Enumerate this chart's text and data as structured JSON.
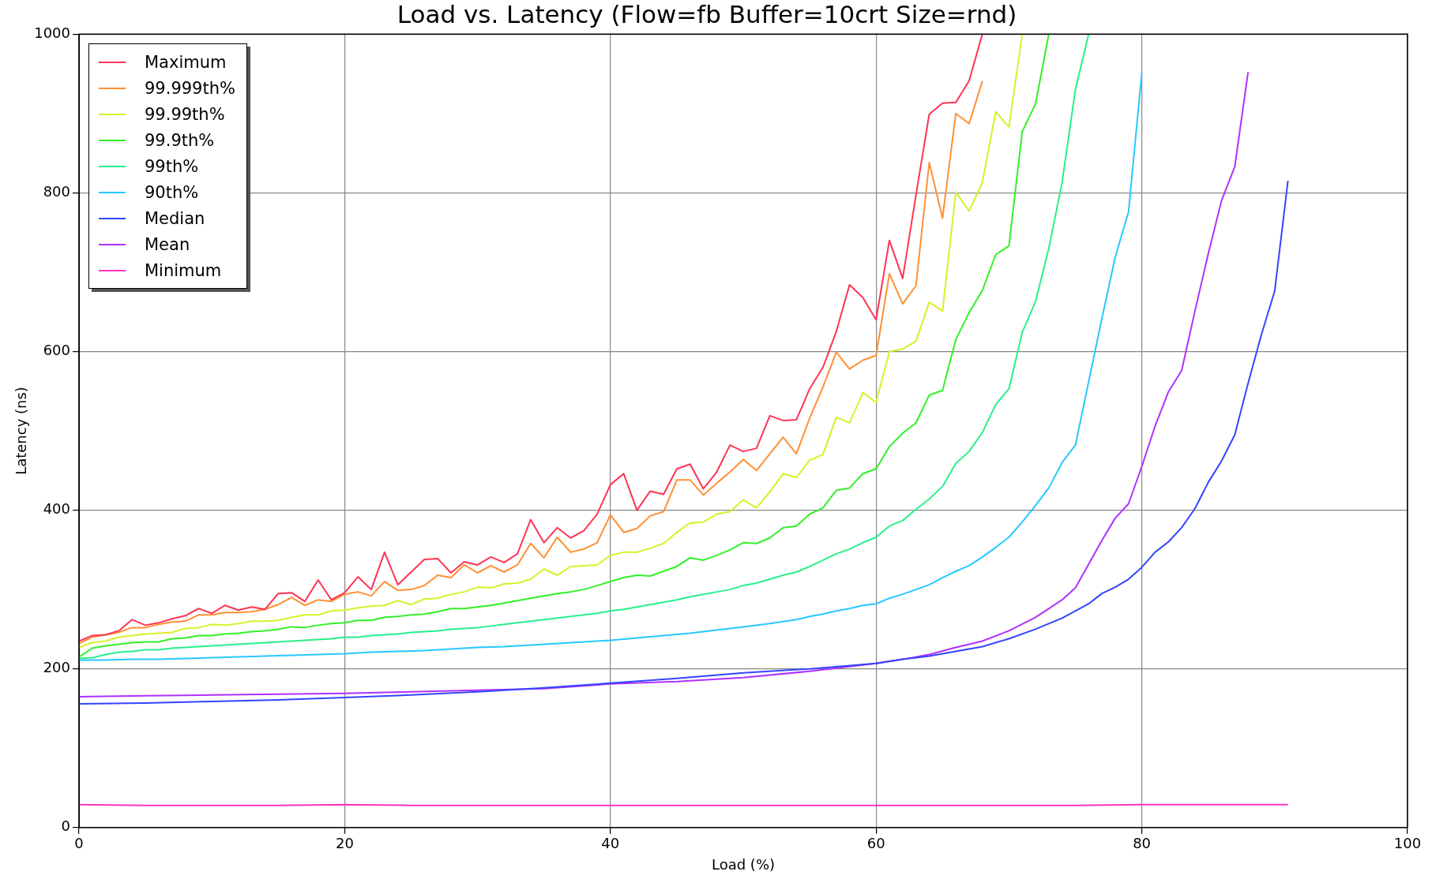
{
  "chart_data": {
    "type": "line",
    "title": "Load vs. Latency (Flow=fb Buffer=10crt Size=rnd)",
    "xlabel": "Load (%)",
    "ylabel": "Latency (ns)",
    "xlim": [
      0,
      100
    ],
    "xticks": [
      0,
      20,
      40,
      60,
      80,
      100
    ],
    "ylim": [
      0,
      1000
    ],
    "yticks": [
      0,
      200,
      400,
      600,
      800,
      1000
    ],
    "grid": true,
    "legend": "top left",
    "marker": "none",
    "line_style": "solid",
    "series": [
      {
        "name": "Maximum",
        "color": "#ff3355",
        "x": [
          0,
          1,
          2,
          3,
          4,
          5,
          6,
          7,
          8,
          9,
          10,
          11,
          12,
          13,
          14,
          15,
          16,
          17,
          18,
          19,
          20,
          21,
          22,
          23,
          24,
          25,
          26,
          27,
          28,
          29,
          30,
          31,
          32,
          33,
          34,
          35,
          36,
          37,
          38,
          39,
          40,
          41,
          42,
          43,
          44,
          45,
          46,
          47,
          48,
          49,
          50,
          51,
          52,
          53,
          54,
          55,
          56,
          57,
          58,
          59,
          60,
          61,
          62,
          63,
          64,
          65,
          66,
          67,
          68
        ],
        "values": [
          235,
          242,
          243,
          248,
          262,
          255,
          258,
          263,
          267,
          276,
          270,
          280,
          274,
          278,
          275,
          295,
          296,
          285,
          312,
          287,
          296,
          316,
          300,
          347,
          306,
          322,
          338,
          339,
          321,
          335,
          331,
          341,
          334,
          345,
          388,
          359,
          378,
          365,
          374,
          395,
          432,
          446,
          400,
          424,
          420,
          452,
          458,
          427,
          448,
          482,
          474,
          478,
          519,
          513,
          514,
          553,
          580,
          625,
          684,
          668,
          640,
          740,
          692,
          797,
          899,
          913,
          914,
          941,
          1000
        ]
      },
      {
        "name": "99.999th%",
        "color": "#ff9033",
        "x": [
          0,
          1,
          2,
          3,
          4,
          5,
          6,
          7,
          8,
          9,
          10,
          11,
          12,
          13,
          14,
          15,
          16,
          17,
          18,
          19,
          20,
          21,
          22,
          23,
          24,
          25,
          26,
          27,
          28,
          29,
          30,
          31,
          32,
          33,
          34,
          35,
          36,
          37,
          38,
          39,
          40,
          41,
          42,
          43,
          44,
          45,
          46,
          47,
          48,
          49,
          50,
          51,
          52,
          53,
          54,
          55,
          56,
          57,
          58,
          59,
          60,
          61,
          62,
          63,
          64,
          65,
          66,
          67,
          68
        ],
        "values": [
          232,
          240,
          243,
          246,
          252,
          252,
          256,
          259,
          260,
          268,
          268,
          271,
          271,
          272,
          275,
          281,
          290,
          280,
          287,
          285,
          294,
          297,
          292,
          310,
          299,
          300,
          305,
          318,
          315,
          331,
          321,
          330,
          322,
          331,
          358,
          340,
          366,
          347,
          351,
          359,
          394,
          372,
          377,
          393,
          398,
          438,
          438,
          419,
          434,
          448,
          464,
          450,
          471,
          492,
          471,
          516,
          555,
          599,
          578,
          589,
          595,
          698,
          660,
          683,
          838,
          768,
          900,
          887,
          941
        ]
      },
      {
        "name": "99.99th%",
        "color": "#d8f028",
        "x": [
          0,
          1,
          2,
          3,
          4,
          5,
          6,
          7,
          8,
          9,
          10,
          11,
          12,
          13,
          14,
          15,
          16,
          17,
          18,
          19,
          20,
          21,
          22,
          23,
          24,
          25,
          26,
          27,
          28,
          29,
          30,
          31,
          32,
          33,
          34,
          35,
          36,
          37,
          38,
          39,
          40,
          41,
          42,
          43,
          44,
          45,
          46,
          47,
          48,
          49,
          50,
          51,
          52,
          53,
          54,
          55,
          56,
          57,
          58,
          59,
          60,
          61,
          62,
          63,
          64,
          65,
          66,
          67,
          68,
          69,
          70,
          71
        ],
        "values": [
          227,
          233,
          235,
          240,
          242,
          244,
          245,
          246,
          251,
          252,
          256,
          255,
          257,
          260,
          260,
          261,
          265,
          268,
          268,
          273,
          274,
          277,
          279,
          280,
          286,
          281,
          288,
          289,
          294,
          297,
          303,
          302,
          307,
          308,
          313,
          326,
          318,
          329,
          330,
          331,
          343,
          347,
          347,
          352,
          358,
          372,
          384,
          385,
          395,
          398,
          413,
          403,
          423,
          446,
          441,
          463,
          470,
          517,
          510,
          548,
          536,
          600,
          603,
          613,
          662,
          651,
          801,
          777,
          813,
          902,
          883,
          1000
        ]
      },
      {
        "name": "99.9th%",
        "color": "#33f028",
        "x": [
          0,
          1,
          2,
          3,
          4,
          5,
          6,
          7,
          8,
          9,
          10,
          11,
          12,
          13,
          14,
          15,
          16,
          17,
          18,
          19,
          20,
          21,
          22,
          23,
          24,
          25,
          26,
          27,
          28,
          29,
          30,
          31,
          32,
          33,
          34,
          35,
          36,
          37,
          38,
          39,
          40,
          41,
          42,
          43,
          44,
          45,
          46,
          47,
          48,
          49,
          50,
          51,
          52,
          53,
          54,
          55,
          56,
          57,
          58,
          59,
          60,
          61,
          62,
          63,
          64,
          65,
          66,
          67,
          68,
          69,
          70,
          71,
          72,
          73
        ],
        "values": [
          215,
          226,
          229,
          231,
          233,
          234,
          234,
          238,
          239,
          242,
          242,
          244,
          245,
          247,
          248,
          250,
          253,
          252,
          255,
          257,
          258,
          261,
          261,
          265,
          266,
          268,
          269,
          272,
          276,
          276,
          278,
          280,
          283,
          286,
          289,
          292,
          295,
          297,
          300,
          305,
          310,
          315,
          318,
          317,
          323,
          329,
          340,
          337,
          343,
          350,
          359,
          358,
          365,
          378,
          380,
          395,
          403,
          425,
          428,
          446,
          452,
          480,
          497,
          510,
          545,
          551,
          615,
          649,
          677,
          722,
          733,
          877,
          912,
          1000
        ]
      },
      {
        "name": "99th%",
        "color": "#28f08a",
        "x": [
          0,
          1,
          2,
          3,
          4,
          5,
          6,
          7,
          8,
          9,
          10,
          11,
          12,
          13,
          14,
          15,
          16,
          17,
          18,
          19,
          20,
          21,
          22,
          23,
          24,
          25,
          26,
          27,
          28,
          29,
          30,
          31,
          32,
          33,
          34,
          35,
          36,
          37,
          38,
          39,
          40,
          41,
          42,
          43,
          44,
          45,
          46,
          47,
          48,
          49,
          50,
          51,
          52,
          53,
          54,
          55,
          56,
          57,
          58,
          59,
          60,
          61,
          62,
          63,
          64,
          65,
          66,
          67,
          68,
          69,
          70,
          71,
          72,
          73,
          74,
          75,
          76
        ],
        "values": [
          213,
          214,
          218,
          221,
          222,
          224,
          224,
          226,
          227,
          228,
          229,
          230,
          231,
          232,
          233,
          234,
          235,
          236,
          237,
          238,
          240,
          240,
          242,
          243,
          244,
          246,
          247,
          248,
          250,
          251,
          252,
          254,
          256,
          258,
          260,
          262,
          264,
          266,
          268,
          270,
          273,
          275,
          278,
          281,
          284,
          287,
          291,
          294,
          297,
          300,
          305,
          308,
          313,
          318,
          322,
          329,
          337,
          345,
          351,
          359,
          366,
          380,
          387,
          401,
          414,
          430,
          459,
          474,
          498,
          533,
          553,
          624,
          663,
          730,
          813,
          930,
          1000
        ]
      },
      {
        "name": "90th%",
        "color": "#28c8ff",
        "x": [
          0,
          2,
          4,
          6,
          8,
          10,
          12,
          14,
          16,
          18,
          20,
          22,
          24,
          26,
          28,
          30,
          32,
          34,
          36,
          38,
          40,
          42,
          44,
          46,
          48,
          50,
          52,
          54,
          55,
          56,
          57,
          58,
          59,
          60,
          61,
          62,
          63,
          64,
          65,
          66,
          67,
          68,
          69,
          70,
          71,
          72,
          73,
          74,
          75,
          76,
          77,
          78,
          79,
          80
        ],
        "values": [
          211,
          211,
          212,
          212,
          213,
          214,
          215,
          216,
          217,
          218,
          219,
          221,
          222,
          223,
          225,
          227,
          228,
          230,
          232,
          234,
          236,
          239,
          242,
          245,
          249,
          253,
          257,
          262,
          266,
          269,
          273,
          276,
          280,
          282,
          289,
          294,
          300,
          306,
          315,
          323,
          330,
          341,
          353,
          366,
          385,
          406,
          428,
          460,
          482,
          562,
          642,
          719,
          776,
          951
        ]
      },
      {
        "name": "Median",
        "color": "#3344ff",
        "x": [
          0,
          5,
          10,
          15,
          20,
          25,
          30,
          35,
          40,
          45,
          50,
          55,
          60,
          62,
          64,
          66,
          68,
          70,
          72,
          74,
          76,
          77,
          78,
          79,
          80,
          81,
          82,
          83,
          84,
          85,
          86,
          87,
          88,
          89,
          90,
          91
        ],
        "values": [
          156,
          157,
          159,
          161,
          164,
          167,
          171,
          176,
          182,
          188,
          195,
          200,
          207,
          212,
          216,
          222,
          228,
          238,
          250,
          264,
          282,
          295,
          303,
          313,
          328,
          347,
          360,
          378,
          402,
          435,
          462,
          495,
          560,
          621,
          676,
          815
        ]
      },
      {
        "name": "Mean",
        "color": "#b030ff",
        "x": [
          0,
          5,
          10,
          15,
          20,
          25,
          30,
          35,
          40,
          45,
          50,
          55,
          57,
          60,
          62,
          64,
          66,
          68,
          70,
          72,
          74,
          75,
          76,
          77,
          78,
          79,
          80,
          81,
          82,
          83,
          84,
          85,
          86,
          87,
          88
        ],
        "values": [
          165,
          166,
          167,
          168,
          169,
          171,
          173,
          175,
          181,
          184,
          189,
          197,
          201,
          207,
          212,
          218,
          227,
          235,
          248,
          265,
          287,
          302,
          332,
          362,
          390,
          408,
          455,
          506,
          549,
          576,
          651,
          723,
          790,
          833,
          952
        ]
      },
      {
        "name": "Minimum",
        "color": "#ff33c0",
        "x": [
          0,
          5,
          10,
          15,
          20,
          25,
          30,
          35,
          40,
          45,
          50,
          55,
          60,
          65,
          70,
          75,
          80,
          85,
          91
        ],
        "values": [
          29,
          28,
          28,
          28,
          29,
          28,
          28,
          28,
          28,
          28,
          28,
          28,
          28,
          28,
          28,
          28,
          29,
          29,
          29
        ]
      }
    ]
  }
}
